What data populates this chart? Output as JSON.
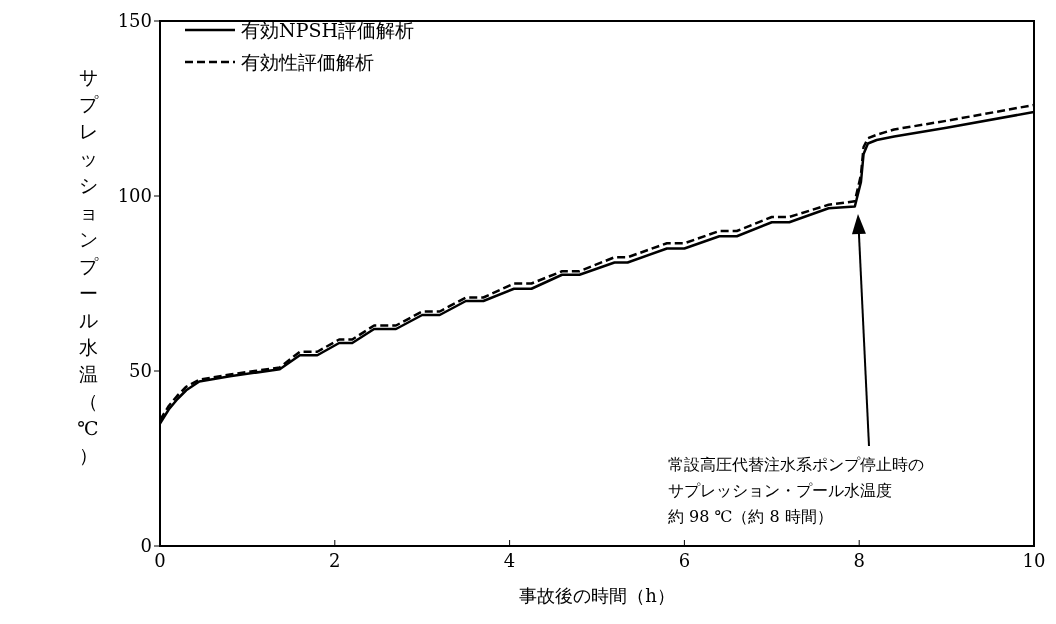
{
  "chart_data": {
    "type": "line",
    "xlabel": "事故後の時間（h）",
    "ylabel": "サプレッションプール水温（℃）",
    "x": [
      0,
      0.1,
      0.2,
      0.3,
      0.45,
      0.8,
      1.37,
      1.6,
      1.8,
      2.05,
      2.2,
      2.45,
      2.7,
      3.0,
      3.2,
      3.5,
      3.7,
      4.05,
      4.25,
      4.6,
      4.8,
      5.2,
      5.35,
      5.8,
      6.0,
      6.4,
      6.6,
      7.0,
      7.2,
      7.65,
      7.95,
      8.02,
      8.05,
      8.1,
      8.2,
      8.4,
      9,
      10
    ],
    "series": [
      {
        "name": "有効NPSH評価解析",
        "color": "#000000",
        "line_style": "solid",
        "values": [
          35,
          39,
          42,
          44.5,
          47,
          48.5,
          50.5,
          54.5,
          54.5,
          58,
          58,
          62,
          62,
          66,
          66,
          70,
          70,
          73.5,
          73.5,
          77.5,
          77.5,
          81,
          81,
          85,
          85,
          88.5,
          88.5,
          92.5,
          92.5,
          96.5,
          97,
          104,
          112,
          115,
          116,
          117,
          119.5,
          124
        ]
      },
      {
        "name": "有効性評価解析",
        "color": "#000000",
        "line_style": "dashed",
        "values": [
          36,
          40,
          43,
          45.5,
          47.5,
          49,
          51,
          55.5,
          55.5,
          59,
          59,
          63,
          63,
          67,
          67,
          71,
          71,
          75,
          75,
          78.5,
          78.5,
          82.5,
          82.5,
          86.5,
          86.5,
          90,
          90,
          94,
          94,
          97.5,
          98.5,
          106,
          114,
          116.5,
          117.5,
          119,
          121.5,
          126
        ]
      }
    ],
    "xlim": [
      0,
      10
    ],
    "xticks": [
      0,
      2,
      4,
      6,
      8,
      10
    ],
    "ylim": [
      0,
      150
    ],
    "yticks": [
      0,
      50,
      100,
      150
    ],
    "grid": false,
    "legend": "top left",
    "marker": "none",
    "annotations": [
      "常設高圧代替注水系ポンプ停止時の",
      "サプレッション・プール水温度",
      "約 98 ℃（約 8 時間）"
    ]
  }
}
